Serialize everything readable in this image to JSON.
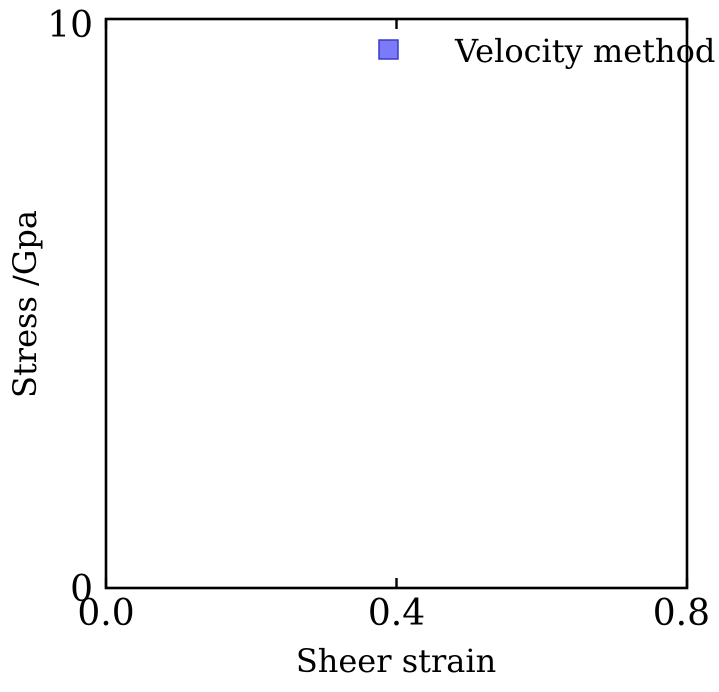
{
  "chart_data": {
    "type": "scatter",
    "title": "",
    "xlabel": "Sheer strain",
    "ylabel": "Stress /Gpa",
    "xlim": [
      0.0,
      0.8
    ],
    "ylim": [
      0,
      10
    ],
    "x_ticks": [
      0.0,
      0.4,
      0.8
    ],
    "x_tick_labels": [
      "0.0",
      "0.4",
      "0.8"
    ],
    "y_ticks": [
      0,
      10
    ],
    "y_tick_labels": [
      "0",
      "10"
    ],
    "grid": false,
    "legend_position": "top-right",
    "series": [
      {
        "name": "Velocity method",
        "marker": "square",
        "color": "#7b7bf7",
        "edge_color": "#3a3acf",
        "x": [],
        "y": []
      }
    ]
  }
}
